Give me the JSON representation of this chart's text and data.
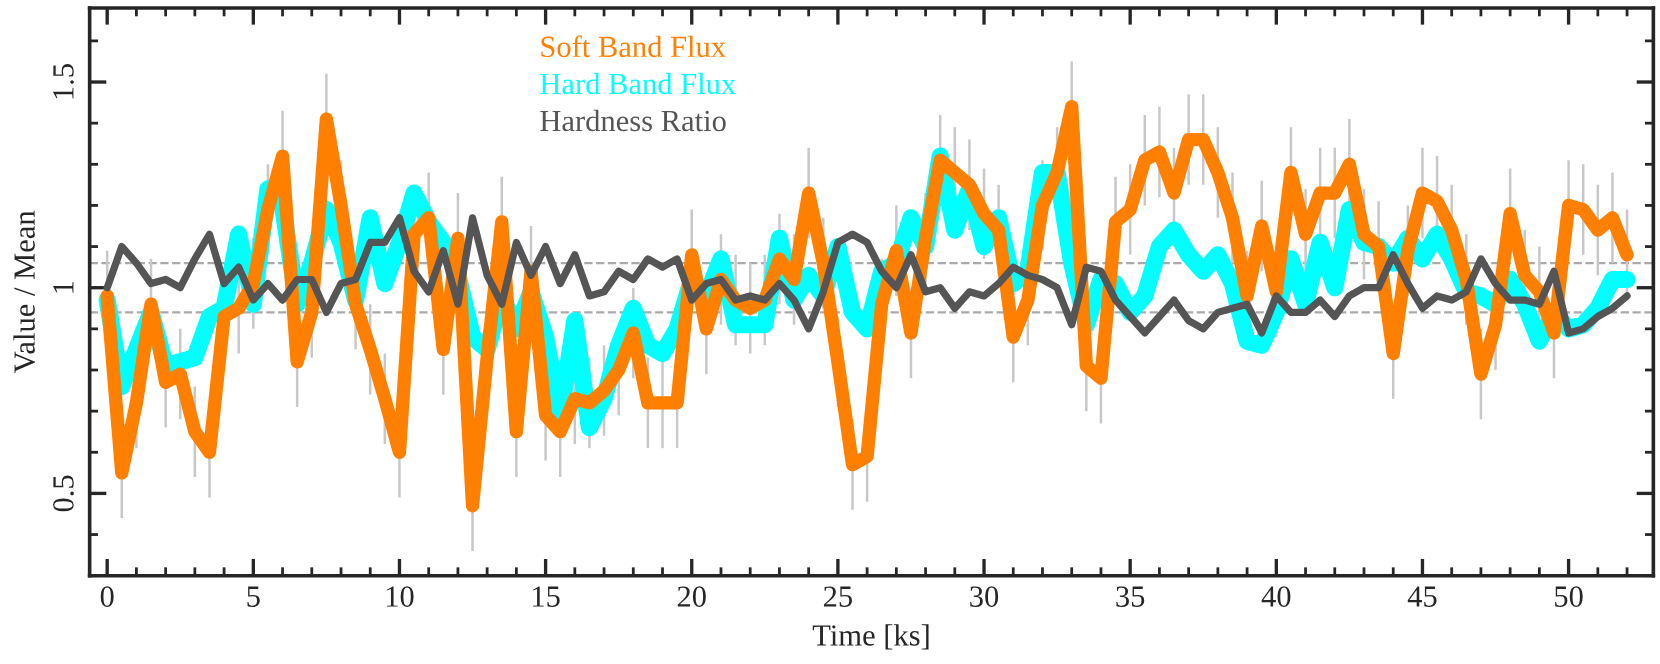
{
  "chart_data": {
    "type": "line",
    "xlabel": "Time [ks]",
    "ylabel": "Value / Mean",
    "x": [
      0,
      0.5,
      1,
      1.5,
      2,
      2.5,
      3,
      3.5,
      4,
      4.5,
      5,
      5.5,
      6,
      6.5,
      7,
      7.5,
      8,
      8.5,
      9,
      9.5,
      10,
      10.5,
      11,
      11.5,
      12,
      12.5,
      13,
      13.5,
      14,
      14.5,
      15,
      15.5,
      16,
      16.5,
      17,
      17.5,
      18,
      18.5,
      19,
      19.5,
      20,
      20.5,
      21,
      21.5,
      22,
      22.5,
      23,
      23.5,
      24,
      24.5,
      25,
      25.5,
      26,
      26.5,
      27,
      27.5,
      28,
      28.5,
      29,
      29.5,
      30,
      30.5,
      31,
      31.5,
      32,
      32.5,
      33,
      33.5,
      34,
      34.5,
      35,
      35.5,
      36,
      36.5,
      37,
      37.5,
      38,
      38.5,
      39,
      39.5,
      40,
      40.5,
      41,
      41.5,
      42,
      42.5,
      43,
      43.5,
      44,
      44.5,
      45,
      45.5,
      46,
      46.5,
      47,
      47.5,
      48,
      48.5,
      49,
      49.5,
      50,
      50.5,
      51,
      51.5,
      52
    ],
    "series": [
      {
        "name": "Hard Band Flux",
        "color": "#00ffff",
        "values": [
          0.97,
          0.76,
          0.85,
          0.94,
          0.81,
          0.82,
          0.83,
          0.93,
          0.95,
          1.13,
          0.96,
          1.24,
          1.2,
          0.96,
          1.06,
          1.19,
          1.11,
          0.97,
          1.17,
          1.01,
          1.11,
          1.23,
          1.16,
          1.11,
          1.03,
          0.88,
          0.85,
          0.98,
          0.9,
          0.99,
          0.88,
          0.69,
          0.92,
          0.66,
          0.73,
          0.86,
          0.95,
          0.86,
          0.84,
          0.9,
          1.02,
          0.98,
          1.07,
          0.91,
          0.91,
          0.91,
          1.12,
          0.97,
          1.03,
          0.98,
          1.1,
          0.94,
          0.9,
          1.04,
          1.06,
          1.17,
          1.1,
          1.32,
          1.14,
          1.24,
          1.1,
          1.17,
          1.01,
          1.04,
          1.28,
          1.28,
          1.06,
          0.91,
          1.02,
          1.01,
          0.94,
          0.98,
          1.1,
          1.14,
          1.08,
          1.04,
          1.08,
          1.01,
          0.87,
          0.86,
          0.94,
          1.07,
          0.96,
          1.11,
          1.0,
          1.19,
          1.11,
          1.1,
          1.06,
          1.12,
          1.07,
          1.13,
          1.07,
          0.99,
          0.98,
          0.96,
          1.02,
          0.96,
          0.87,
          0.94,
          0.9,
          0.91,
          0.95,
          1.02,
          1.02
        ]
      },
      {
        "name": "Soft Band Flux",
        "color": "#ff7f00",
        "values": [
          0.98,
          0.55,
          0.72,
          0.96,
          0.77,
          0.79,
          0.65,
          0.6,
          0.93,
          0.95,
          1.01,
          1.19,
          1.32,
          0.82,
          0.94,
          1.41,
          1.2,
          0.96,
          0.85,
          0.73,
          0.6,
          1.13,
          1.17,
          0.85,
          1.12,
          0.47,
          0.83,
          1.16,
          0.65,
          1.04,
          0.69,
          0.65,
          0.73,
          0.72,
          0.75,
          0.8,
          0.89,
          0.72,
          0.72,
          0.72,
          1.08,
          0.9,
          1.02,
          0.97,
          0.95,
          0.97,
          1.07,
          1.02,
          1.23,
          1.06,
          0.82,
          0.57,
          0.59,
          0.96,
          1.09,
          0.89,
          1.12,
          1.31,
          1.28,
          1.25,
          1.18,
          1.14,
          0.88,
          0.97,
          1.2,
          1.28,
          1.44,
          0.81,
          0.78,
          1.16,
          1.19,
          1.31,
          1.33,
          1.23,
          1.36,
          1.36,
          1.28,
          1.17,
          0.98,
          1.15,
          0.99,
          1.28,
          1.13,
          1.23,
          1.23,
          1.3,
          1.13,
          1.1,
          0.84,
          1.09,
          1.23,
          1.21,
          1.14,
          1.02,
          0.79,
          0.91,
          1.18,
          1.03,
          0.99,
          0.89,
          1.2,
          1.19,
          1.14,
          1.17,
          1.08
        ],
        "errors": [
          0.11,
          0.11,
          0.11,
          0.11,
          0.11,
          0.11,
          0.11,
          0.11,
          0.11,
          0.11,
          0.11,
          0.11,
          0.11,
          0.11,
          0.11,
          0.11,
          0.11,
          0.11,
          0.11,
          0.11,
          0.11,
          0.11,
          0.11,
          0.11,
          0.11,
          0.11,
          0.11,
          0.11,
          0.11,
          0.11,
          0.11,
          0.11,
          0.11,
          0.11,
          0.11,
          0.11,
          0.11,
          0.11,
          0.11,
          0.11,
          0.11,
          0.11,
          0.11,
          0.11,
          0.11,
          0.11,
          0.11,
          0.11,
          0.11,
          0.11,
          0.11,
          0.11,
          0.11,
          0.11,
          0.11,
          0.11,
          0.11,
          0.11,
          0.11,
          0.11,
          0.11,
          0.11,
          0.11,
          0.11,
          0.11,
          0.11,
          0.11,
          0.11,
          0.11,
          0.11,
          0.11,
          0.11,
          0.11,
          0.11,
          0.11,
          0.11,
          0.11,
          0.11,
          0.11,
          0.11,
          0.11,
          0.11,
          0.11,
          0.11,
          0.11,
          0.11,
          0.11,
          0.11,
          0.11,
          0.11,
          0.11,
          0.11,
          0.11,
          0.11,
          0.11,
          0.11,
          0.11,
          0.11,
          0.11,
          0.11,
          0.11,
          0.11,
          0.11,
          0.11,
          0.11
        ]
      },
      {
        "name": "Hardness Ratio",
        "color": "#555555",
        "values": [
          1.0,
          1.1,
          1.06,
          1.01,
          1.02,
          1.0,
          1.07,
          1.13,
          1.01,
          1.05,
          0.97,
          1.01,
          0.97,
          1.02,
          1.02,
          0.94,
          1.01,
          1.02,
          1.11,
          1.11,
          1.17,
          1.04,
          0.99,
          1.09,
          0.96,
          1.17,
          1.03,
          0.96,
          1.11,
          1.03,
          1.1,
          1.01,
          1.08,
          0.98,
          0.99,
          1.04,
          1.02,
          1.07,
          1.05,
          1.07,
          0.97,
          1.01,
          1.02,
          0.97,
          0.98,
          0.97,
          1.01,
          0.97,
          0.9,
          0.99,
          1.11,
          1.13,
          1.11,
          1.04,
          1.0,
          1.08,
          0.99,
          1.0,
          0.95,
          0.99,
          0.98,
          1.01,
          1.05,
          1.03,
          1.02,
          1.0,
          0.91,
          1.05,
          1.04,
          0.97,
          0.93,
          0.89,
          0.93,
          0.97,
          0.92,
          0.9,
          0.94,
          0.95,
          0.96,
          0.89,
          0.98,
          0.94,
          0.94,
          0.97,
          0.93,
          0.98,
          1.0,
          1.0,
          1.08,
          1.01,
          0.95,
          0.98,
          0.97,
          0.99,
          1.07,
          1.01,
          0.97,
          0.97,
          0.96,
          1.04,
          0.89,
          0.9,
          0.93,
          0.95,
          0.98
        ]
      }
    ],
    "xlim": [
      -0.6,
      52.9
    ],
    "xticks": [
      0,
      5,
      10,
      15,
      20,
      25,
      30,
      35,
      40,
      45,
      50
    ],
    "ylim": [
      0.3,
      1.68
    ],
    "yticks": [
      0.5,
      1,
      1.5
    ],
    "ref_lines": [
      {
        "axis": "y",
        "value": 1.06,
        "color": "#aaaaaa",
        "line_style": "dashed"
      },
      {
        "axis": "y",
        "value": 0.94,
        "color": "#aaaaaa",
        "line_style": "dashed"
      }
    ],
    "legend": "top",
    "grid": false,
    "marker": "none",
    "line_style": "solid"
  }
}
